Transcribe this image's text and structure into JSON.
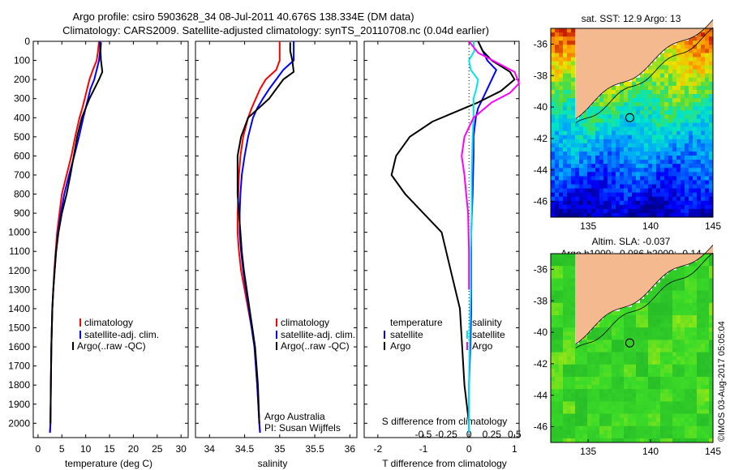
{
  "header": {
    "line1": "Argo profile: csiro 5903628_34 08-Jul-2011 40.676S 138.334E (DM data)",
    "line2": "Climatology: CARS2009. Satellite-adjusted climatology: synTS_20110708.nc (0.04d earlier)"
  },
  "colors": {
    "climatology": "#ff0000",
    "satellite": "#0000ff",
    "argo": "#000000",
    "sat_salinity": "#00e5e5",
    "argo_salinity": "#ff00ff",
    "land": "#f4b98e"
  },
  "chart_data": [
    {
      "type": "line",
      "id": "temperature",
      "xlabel": "temperature (deg C)",
      "xlim": [
        -1,
        31.5
      ],
      "xticks": [
        0,
        5,
        10,
        15,
        20,
        25,
        30
      ],
      "ylim": [
        0,
        2075
      ],
      "yticks": [
        0,
        100,
        200,
        300,
        400,
        500,
        600,
        700,
        800,
        900,
        1000,
        1100,
        1200,
        1300,
        1400,
        1500,
        1600,
        1700,
        1800,
        1900,
        2000
      ],
      "legend": [
        "climatology",
        "satellite-adj. clim.",
        "Argo(..raw -QC)"
      ],
      "series": [
        {
          "name": "climatology",
          "color": "#ff0000",
          "x": [
            12.8,
            12.6,
            12.3,
            11.5,
            10.8,
            10.3,
            9.8,
            9.3,
            8.7,
            7.8,
            7.0,
            6.0,
            5.0,
            4.5,
            4.0,
            3.7,
            3.4,
            3.2,
            3.0,
            2.9,
            2.8,
            2.7,
            2.6,
            2.5
          ],
          "y": [
            0,
            50,
            100,
            150,
            200,
            250,
            300,
            350,
            400,
            500,
            600,
            700,
            800,
            900,
            1000,
            1100,
            1200,
            1300,
            1400,
            1500,
            1600,
            1800,
            2000,
            2050
          ]
        },
        {
          "name": "satellite-adj. clim.",
          "color": "#0000ff",
          "x": [
            13.0,
            13.0,
            12.8,
            12.3,
            11.8,
            11.0,
            10.5,
            10.0,
            9.5,
            8.6,
            7.6,
            6.5,
            5.5,
            4.8,
            4.2,
            3.8,
            3.5,
            3.2,
            3.0,
            2.9,
            2.8,
            2.7,
            2.6,
            2.5
          ],
          "y": [
            0,
            50,
            100,
            150,
            200,
            250,
            300,
            350,
            400,
            500,
            600,
            700,
            800,
            900,
            1000,
            1100,
            1200,
            1300,
            1400,
            1500,
            1600,
            1800,
            2000,
            2050
          ]
        },
        {
          "name": "Argo(..raw -QC)",
          "color": "#000000",
          "x": [
            13.2,
            13.1,
            13.2,
            13.5,
            12.8,
            11.8,
            10.8,
            10.0,
            9.2,
            8.2,
            7.5,
            6.8,
            6.0,
            5.0,
            4.3,
            3.8,
            3.5,
            3.2,
            3.0,
            2.9,
            2.8,
            2.7,
            2.6
          ],
          "y": [
            5,
            50,
            100,
            160,
            200,
            250,
            300,
            350,
            400,
            500,
            600,
            700,
            800,
            900,
            1000,
            1100,
            1200,
            1300,
            1400,
            1500,
            1600,
            1800,
            2000
          ]
        }
      ]
    },
    {
      "type": "line",
      "id": "salinity",
      "xlabel": "salinity",
      "xlim": [
        33.8,
        36.1
      ],
      "xticks": [
        34,
        34.5,
        35,
        35.5,
        36
      ],
      "ylim": [
        0,
        2075
      ],
      "legend": [
        "climatology",
        "satellite-adj. clim.",
        "Argo(..raw -QC)"
      ],
      "annotation": [
        "Argo Australia",
        "PI: Susan Wijffels"
      ],
      "series": [
        {
          "name": "climatology",
          "color": "#ff0000",
          "x": [
            35.0,
            35.0,
            35.0,
            34.95,
            34.8,
            34.72,
            34.66,
            34.6,
            34.55,
            34.48,
            34.44,
            34.42,
            34.41,
            34.4,
            34.4,
            34.42,
            34.45,
            34.5,
            34.55,
            34.6,
            34.64,
            34.68,
            34.71,
            34.72
          ],
          "y": [
            0,
            50,
            100,
            150,
            200,
            250,
            300,
            350,
            400,
            500,
            600,
            700,
            800,
            900,
            1000,
            1100,
            1200,
            1300,
            1400,
            1500,
            1600,
            1800,
            2000,
            2050
          ]
        },
        {
          "name": "satellite-adj. clim.",
          "color": "#0000ff",
          "x": [
            35.2,
            35.2,
            35.2,
            35.05,
            34.95,
            34.85,
            34.76,
            34.68,
            34.62,
            34.55,
            34.5,
            34.46,
            34.44,
            34.43,
            34.43,
            34.45,
            34.48,
            34.52,
            34.56,
            34.6,
            34.64,
            34.68,
            34.71,
            34.72
          ],
          "y": [
            0,
            50,
            100,
            150,
            200,
            250,
            300,
            350,
            400,
            500,
            600,
            700,
            800,
            900,
            1000,
            1100,
            1200,
            1300,
            1400,
            1500,
            1600,
            1800,
            2000,
            2050
          ]
        },
        {
          "name": "Argo(..raw -QC)",
          "color": "#000000",
          "x": [
            35.15,
            35.15,
            35.18,
            35.2,
            35.05,
            34.95,
            34.85,
            34.7,
            34.55,
            34.45,
            34.4,
            34.4,
            34.4,
            34.42,
            34.44,
            34.46,
            34.49,
            34.53,
            34.57,
            34.61,
            34.65,
            34.69,
            34.71
          ],
          "y": [
            5,
            50,
            100,
            160,
            200,
            250,
            300,
            350,
            400,
            500,
            600,
            700,
            800,
            900,
            1000,
            1100,
            1200,
            1300,
            1400,
            1500,
            1600,
            1800,
            2000
          ]
        }
      ]
    },
    {
      "type": "line",
      "id": "difference",
      "xlabel_bottom": "T difference from climatology",
      "xlabel_top": "S difference from climatology",
      "xlim": [
        -2.3,
        1.1
      ],
      "xticks_T": [
        -2,
        -1,
        0,
        1
      ],
      "xticks_S": [
        -0.5,
        -0.25,
        0,
        0.25,
        0.5
      ],
      "ylim": [
        0,
        2075
      ],
      "legend_temperature": {
        "title": "temperature",
        "items": [
          "satellite",
          "Argo"
        ]
      },
      "legend_salinity": {
        "title": "salinity",
        "items": [
          "satellite",
          "Argo"
        ]
      },
      "series": [
        {
          "name": "temperature satellite",
          "color": "#0000ff",
          "x": [
            0.2,
            0.3,
            0.4,
            0.6,
            0.5,
            0.4,
            0.3,
            0.2,
            0.15,
            0.1,
            0.1,
            0.08,
            0.05,
            0.05,
            0.05,
            0.03,
            0.0,
            0.0,
            0.0
          ],
          "y": [
            0,
            50,
            100,
            150,
            200,
            250,
            300,
            350,
            400,
            500,
            600,
            800,
            1000,
            1200,
            1400,
            1600,
            1800,
            2000,
            2050
          ]
        },
        {
          "name": "temperature Argo",
          "color": "#000000",
          "x": [
            0.2,
            0.3,
            0.5,
            0.9,
            1.0,
            0.7,
            0.2,
            -0.4,
            -0.8,
            -1.3,
            -1.6,
            -1.7,
            -1.4,
            -1.0,
            -0.6,
            -0.4,
            -0.2,
            -0.1,
            0.0
          ],
          "y": [
            0,
            50,
            100,
            160,
            200,
            260,
            320,
            380,
            420,
            500,
            600,
            700,
            800,
            900,
            1000,
            1200,
            1400,
            1800,
            2000
          ]
        },
        {
          "name": "salinity satellite",
          "color": "#00e5e5",
          "x": [
            0.05,
            0.06,
            0.0,
            0.02,
            0.1,
            0.08,
            0.05,
            0.05,
            0.04,
            0.03,
            0.03,
            0.02,
            0.02,
            0.01,
            0.0,
            0.0
          ],
          "y": [
            0,
            50,
            100,
            150,
            200,
            250,
            300,
            400,
            500,
            700,
            900,
            1100,
            1300,
            1500,
            1800,
            2050
          ]
        },
        {
          "name": "salinity Argo",
          "color": "#ff00ff",
          "x": [
            0.0,
            0.1,
            0.3,
            0.5,
            0.55,
            0.45,
            0.25,
            0.05,
            -0.05,
            -0.08,
            -0.05,
            -0.03,
            -0.01,
            0.0,
            0.0
          ],
          "y": [
            0,
            60,
            110,
            160,
            220,
            270,
            320,
            400,
            500,
            600,
            700,
            800,
            900,
            1100,
            1300
          ]
        }
      ]
    },
    {
      "type": "heatmap",
      "id": "sst_map",
      "title": "sat. SST: 12.9 Argo: 13",
      "xlim": [
        132,
        145
      ],
      "ylim": [
        -47,
        -35
      ],
      "xticks": [
        135,
        140,
        145
      ],
      "yticks": [
        -36,
        -38,
        -40,
        -42,
        -44,
        -46
      ],
      "marker": {
        "lon": 138.334,
        "lat": -40.676
      }
    },
    {
      "type": "heatmap",
      "id": "sla_map",
      "title_line1": "Altim. SLA: -0.037",
      "title_line2": "Argo h1000: -0.086 h2000: -0.14",
      "xlim": [
        132,
        145
      ],
      "ylim": [
        -47,
        -35
      ],
      "xticks": [
        135,
        140,
        145
      ],
      "yticks": [
        -36,
        -38,
        -40,
        -42,
        -44,
        -46
      ],
      "marker": {
        "lon": 138.334,
        "lat": -40.676
      }
    }
  ],
  "footer": {
    "credit": "©IMOS 03-Aug-2017 05:05:04"
  }
}
